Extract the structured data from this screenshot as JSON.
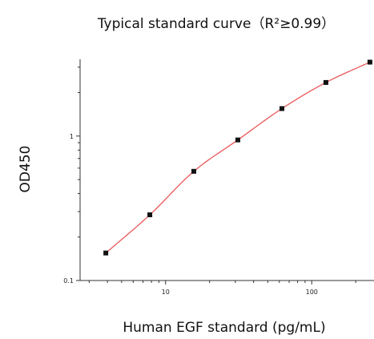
{
  "chart_data": {
    "type": "scatter",
    "title": "Typical standard curve（R²≥0.99）",
    "xlabel": "Human EGF standard (pg/mL)",
    "ylabel": "OD450",
    "xscale": "log",
    "yscale": "log",
    "xlim": [
      2.6,
      260
    ],
    "ylim": [
      0.1,
      3.4
    ],
    "x_ticks": [
      10,
      100
    ],
    "y_ticks": [
      0.1,
      1
    ],
    "x_tick_labels": [
      "10",
      "100"
    ],
    "y_tick_labels": [
      "0.1",
      "1"
    ],
    "grid": false,
    "legend": "none",
    "x": [
      3.9,
      7.8,
      15.6,
      31.2,
      62.5,
      125,
      250
    ],
    "y": [
      0.155,
      0.285,
      0.57,
      0.94,
      1.55,
      2.35,
      3.25
    ],
    "fit_curve": true,
    "colors": {
      "points": "#111111",
      "curve": "#e8585a",
      "axes": "#333333"
    }
  }
}
